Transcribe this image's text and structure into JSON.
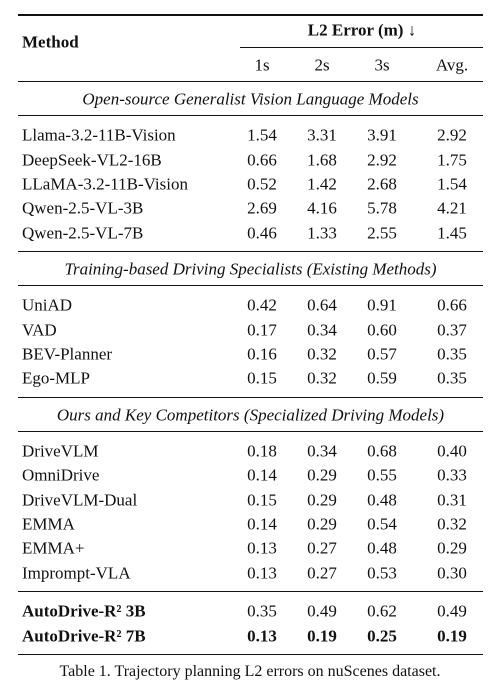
{
  "table": {
    "header": {
      "method": "Method",
      "group": "L2 Error (m) ↓",
      "columns": [
        "1s",
        "2s",
        "3s",
        "Avg."
      ]
    },
    "sections": [
      {
        "title": "Open-source Generalist Vision Language Models",
        "rows": [
          [
            "Llama-3.2-11B-Vision",
            "1.54",
            "3.31",
            "3.91",
            "2.92"
          ],
          [
            "DeepSeek-VL2-16B",
            "0.66",
            "1.68",
            "2.92",
            "1.75"
          ],
          [
            "LLaMA-3.2-11B-Vision",
            "0.52",
            "1.42",
            "2.68",
            "1.54"
          ],
          [
            "Qwen-2.5-VL-3B",
            "2.69",
            "4.16",
            "5.78",
            "4.21"
          ],
          [
            "Qwen-2.5-VL-7B",
            "0.46",
            "1.33",
            "2.55",
            "1.45"
          ]
        ]
      },
      {
        "title": "Training-based Driving Specialists (Existing Methods)",
        "rows": [
          [
            "UniAD",
            "0.42",
            "0.64",
            "0.91",
            "0.66"
          ],
          [
            "VAD",
            "0.17",
            "0.34",
            "0.60",
            "0.37"
          ],
          [
            "BEV-Planner",
            "0.16",
            "0.32",
            "0.57",
            "0.35"
          ],
          [
            "Ego-MLP",
            "0.15",
            "0.32",
            "0.59",
            "0.35"
          ]
        ]
      },
      {
        "title": "Ours and Key Competitors (Specialized Driving Models)",
        "rows": [
          [
            "DriveVLM",
            "0.18",
            "0.34",
            "0.68",
            "0.40"
          ],
          [
            "OmniDrive",
            "0.14",
            "0.29",
            "0.55",
            "0.33"
          ],
          [
            "DriveVLM-Dual",
            "0.15",
            "0.29",
            "0.48",
            "0.31"
          ],
          [
            "EMMA",
            "0.14",
            "0.29",
            "0.54",
            "0.32"
          ],
          [
            "EMMA+",
            "0.13",
            "0.27",
            "0.48",
            "0.29"
          ],
          [
            "Imprompt-VLA",
            "0.13",
            "0.27",
            "0.53",
            "0.30"
          ]
        ]
      },
      {
        "title": null,
        "rows": [
          [
            "AutoDrive-R² 3B",
            "0.35",
            "0.49",
            "0.62",
            "0.49"
          ],
          [
            "AutoDrive-R² 7B",
            "0.13",
            "0.19",
            "0.25",
            "0.19"
          ]
        ]
      }
    ]
  },
  "caption": "Table 1. Trajectory planning L2 errors on nuScenes dataset."
}
